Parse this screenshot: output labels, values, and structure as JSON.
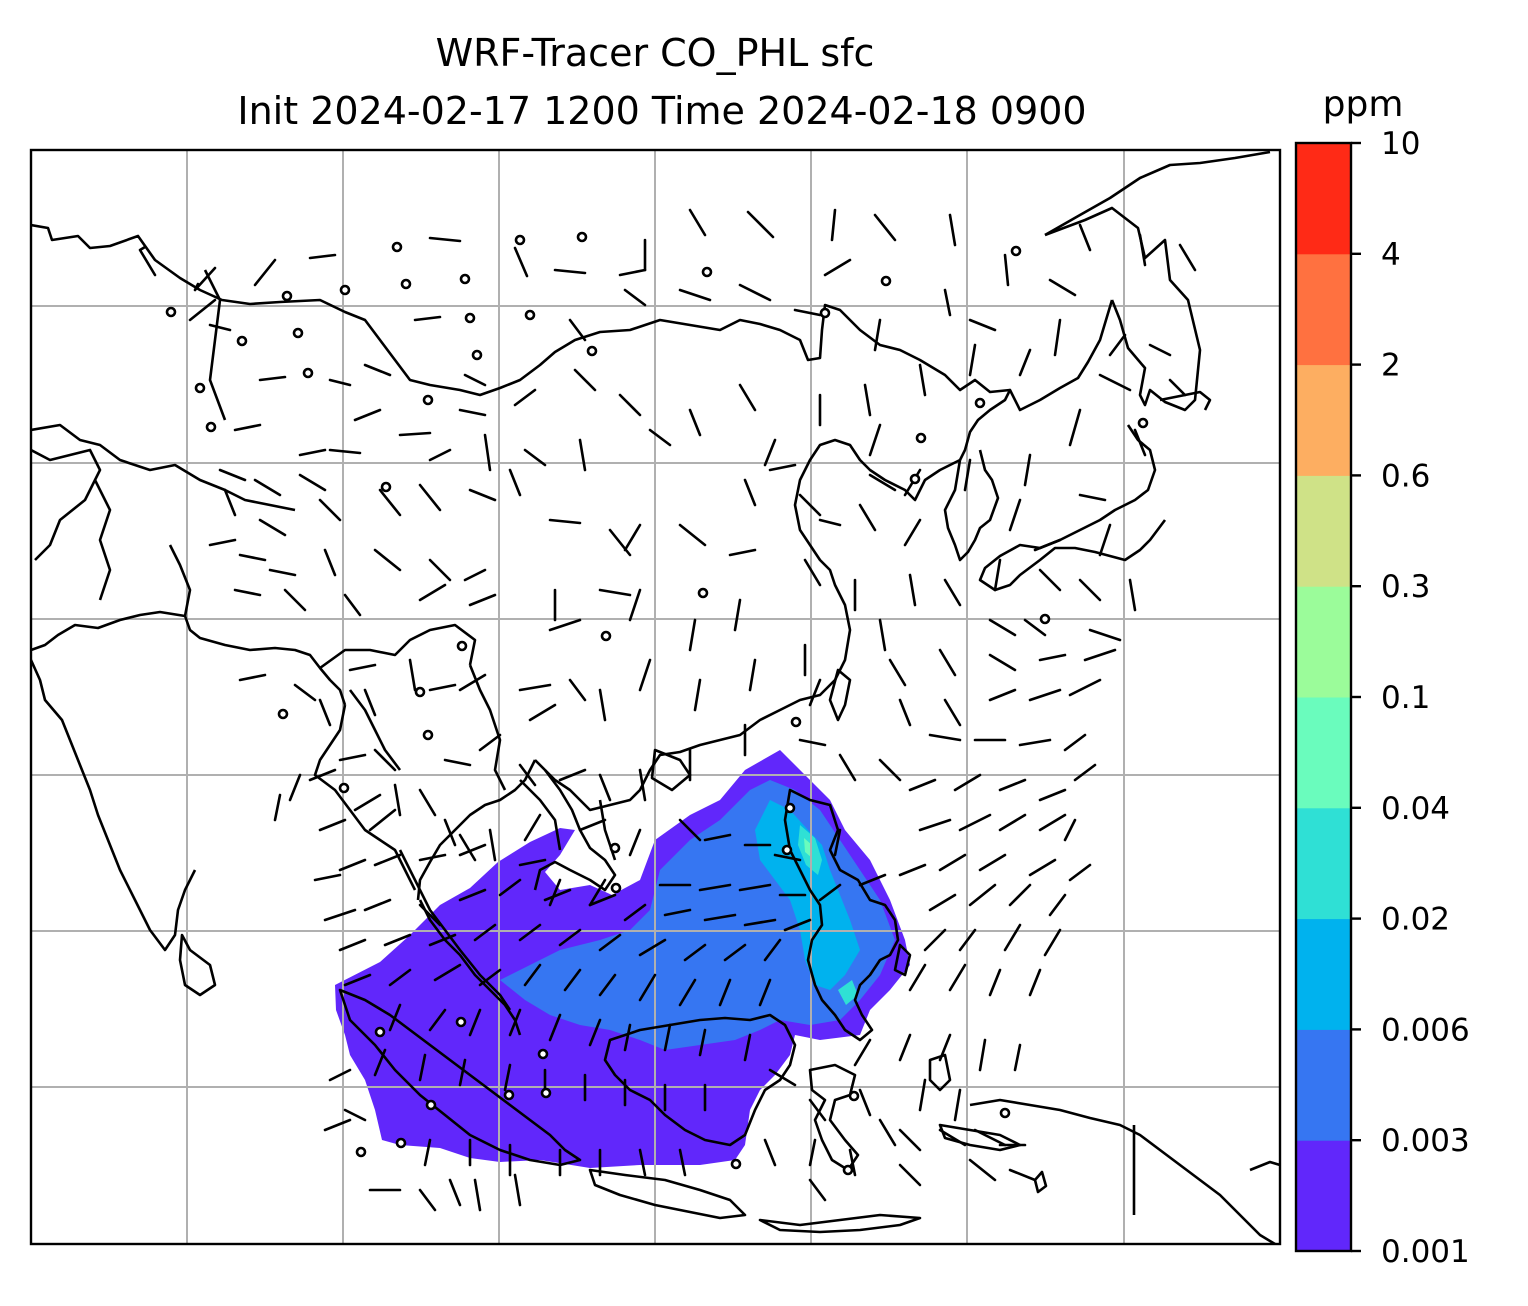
{
  "title": {
    "line1": "WRF-Tracer CO_PHL sfc",
    "line2": "Init 2024-02-17 1200 Time 2024-02-18 0900"
  },
  "colorbar": {
    "unit": "ppm",
    "levels": [
      "0.001",
      "0.003",
      "0.006",
      "0.02",
      "0.04",
      "0.1",
      "0.3",
      "0.6",
      "2",
      "4",
      "10"
    ],
    "colors": [
      "#6127fb",
      "#3676f2",
      "#00b2ee",
      "#2fe0d5",
      "#6afcbd",
      "#9bfc9a",
      "#cfe287",
      "#fdae61",
      "#ff7140",
      "#ff2a16"
    ]
  },
  "map": {
    "grid": true,
    "features": [
      "coastlines",
      "country-borders",
      "wind-barbs",
      "tracer-concentration-fill"
    ]
  }
}
